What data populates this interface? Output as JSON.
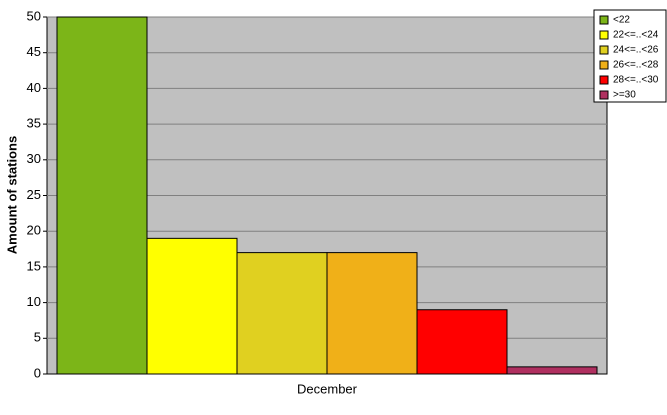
{
  "chart_data": {
    "type": "bar",
    "y_label": "Amount of stations",
    "categories": [
      "December"
    ],
    "series": [
      {
        "name": "<22",
        "color": "#7cb518",
        "values": [
          50
        ]
      },
      {
        "name": "22<=..<24",
        "color": "#ffff00",
        "values": [
          19
        ]
      },
      {
        "name": "24<=..<26",
        "color": "#e0d020",
        "values": [
          17
        ]
      },
      {
        "name": "26<=..<28",
        "color": "#f0b018",
        "values": [
          17
        ]
      },
      {
        "name": "28<=..<30",
        "color": "#ff0000",
        "values": [
          9
        ]
      },
      {
        "name": ">=30",
        "color": "#b03060",
        "values": [
          1
        ]
      }
    ],
    "ylim": [
      0,
      50
    ],
    "yticks": [
      0,
      5,
      10,
      15,
      20,
      25,
      30,
      35,
      40,
      45,
      50
    ],
    "grid": true,
    "legend": "top-right"
  }
}
